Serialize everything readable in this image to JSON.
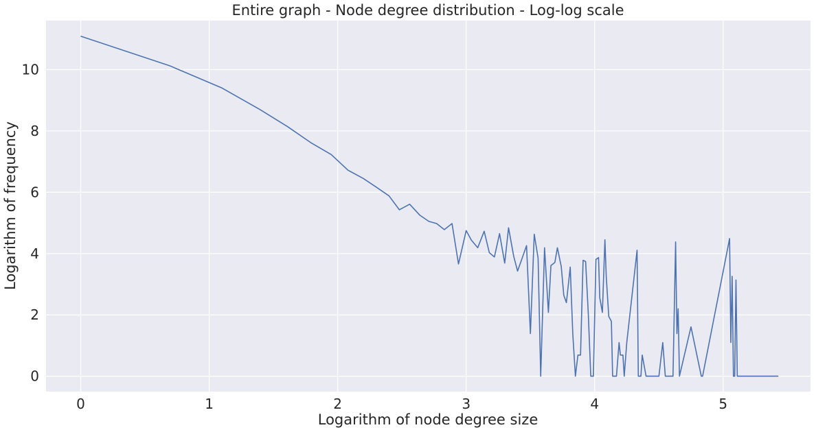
{
  "chart_data": {
    "type": "line",
    "title": "Entire graph - Node degree distribution - Log-log scale",
    "xlabel": "Logarithm of node degree size",
    "ylabel": "Logarithm of frequency",
    "xlim": [
      -0.27,
      5.68
    ],
    "ylim": [
      -0.5,
      11.6
    ],
    "xticks": [
      0,
      1,
      2,
      3,
      4,
      5
    ],
    "yticks": [
      0,
      2,
      4,
      6,
      8,
      10
    ],
    "xtick_labels": [
      "0",
      "1",
      "2",
      "3",
      "4",
      "5"
    ],
    "ytick_labels": [
      "0",
      "2",
      "4",
      "6",
      "8",
      "10"
    ],
    "grid": true,
    "background": "#eaeaf2",
    "grid_color": "#ffffff",
    "series": [
      {
        "color": "#4c72b0",
        "x": [
          0,
          0.69,
          1.1,
          1.39,
          1.61,
          1.79,
          1.95,
          2.08,
          2.2,
          2.3,
          2.4,
          2.48,
          2.56,
          2.64,
          2.71,
          2.77,
          2.83,
          2.89,
          2.94,
          3.0,
          3.04,
          3.09,
          3.14,
          3.18,
          3.22,
          3.26,
          3.3,
          3.33,
          3.37,
          3.4,
          3.43,
          3.47,
          3.5,
          3.53,
          3.56,
          3.58,
          3.61,
          3.64,
          3.66,
          3.69,
          3.71,
          3.74,
          3.76,
          3.78,
          3.81,
          3.83,
          3.85,
          3.87,
          3.89,
          3.91,
          3.93,
          3.95,
          3.97,
          3.99,
          4.01,
          4.03,
          4.04,
          4.06,
          4.08,
          4.09,
          4.11,
          4.13,
          4.14,
          4.16,
          4.17,
          4.19,
          4.2,
          4.22,
          4.23,
          4.25,
          4.33,
          4.34,
          4.36,
          4.37,
          4.4,
          4.5,
          4.53,
          4.55,
          4.58,
          4.61,
          4.63,
          4.64,
          4.65,
          4.66,
          4.75,
          4.83,
          4.84,
          5.05,
          5.06,
          5.07,
          5.08,
          5.09,
          5.1,
          5.11,
          5.43
        ],
        "y": [
          11.09,
          10.13,
          9.4,
          8.71,
          8.14,
          7.62,
          7.23,
          6.72,
          6.45,
          6.17,
          5.88,
          5.43,
          5.61,
          5.25,
          5.05,
          4.98,
          4.78,
          4.98,
          3.66,
          4.75,
          4.44,
          4.19,
          4.73,
          4.03,
          3.89,
          4.65,
          3.69,
          4.84,
          3.91,
          3.43,
          3.78,
          4.26,
          1.39,
          4.63,
          3.85,
          0,
          4.19,
          2.08,
          3.61,
          3.71,
          4.19,
          3.58,
          2.64,
          2.4,
          3.56,
          1.39,
          0,
          0.69,
          0.69,
          3.78,
          3.74,
          2.08,
          0,
          0,
          3.81,
          3.87,
          2.56,
          2.08,
          4.45,
          3.26,
          1.95,
          1.79,
          0,
          0,
          0,
          1.1,
          0.69,
          0.69,
          0,
          1.1,
          4.11,
          0,
          0,
          0.69,
          0,
          0,
          1.1,
          0,
          0,
          0,
          4.38,
          1.39,
          2.2,
          0,
          1.61,
          0,
          0,
          4.49,
          1.1,
          3.26,
          0,
          0,
          3.14,
          0,
          0
        ]
      }
    ]
  }
}
